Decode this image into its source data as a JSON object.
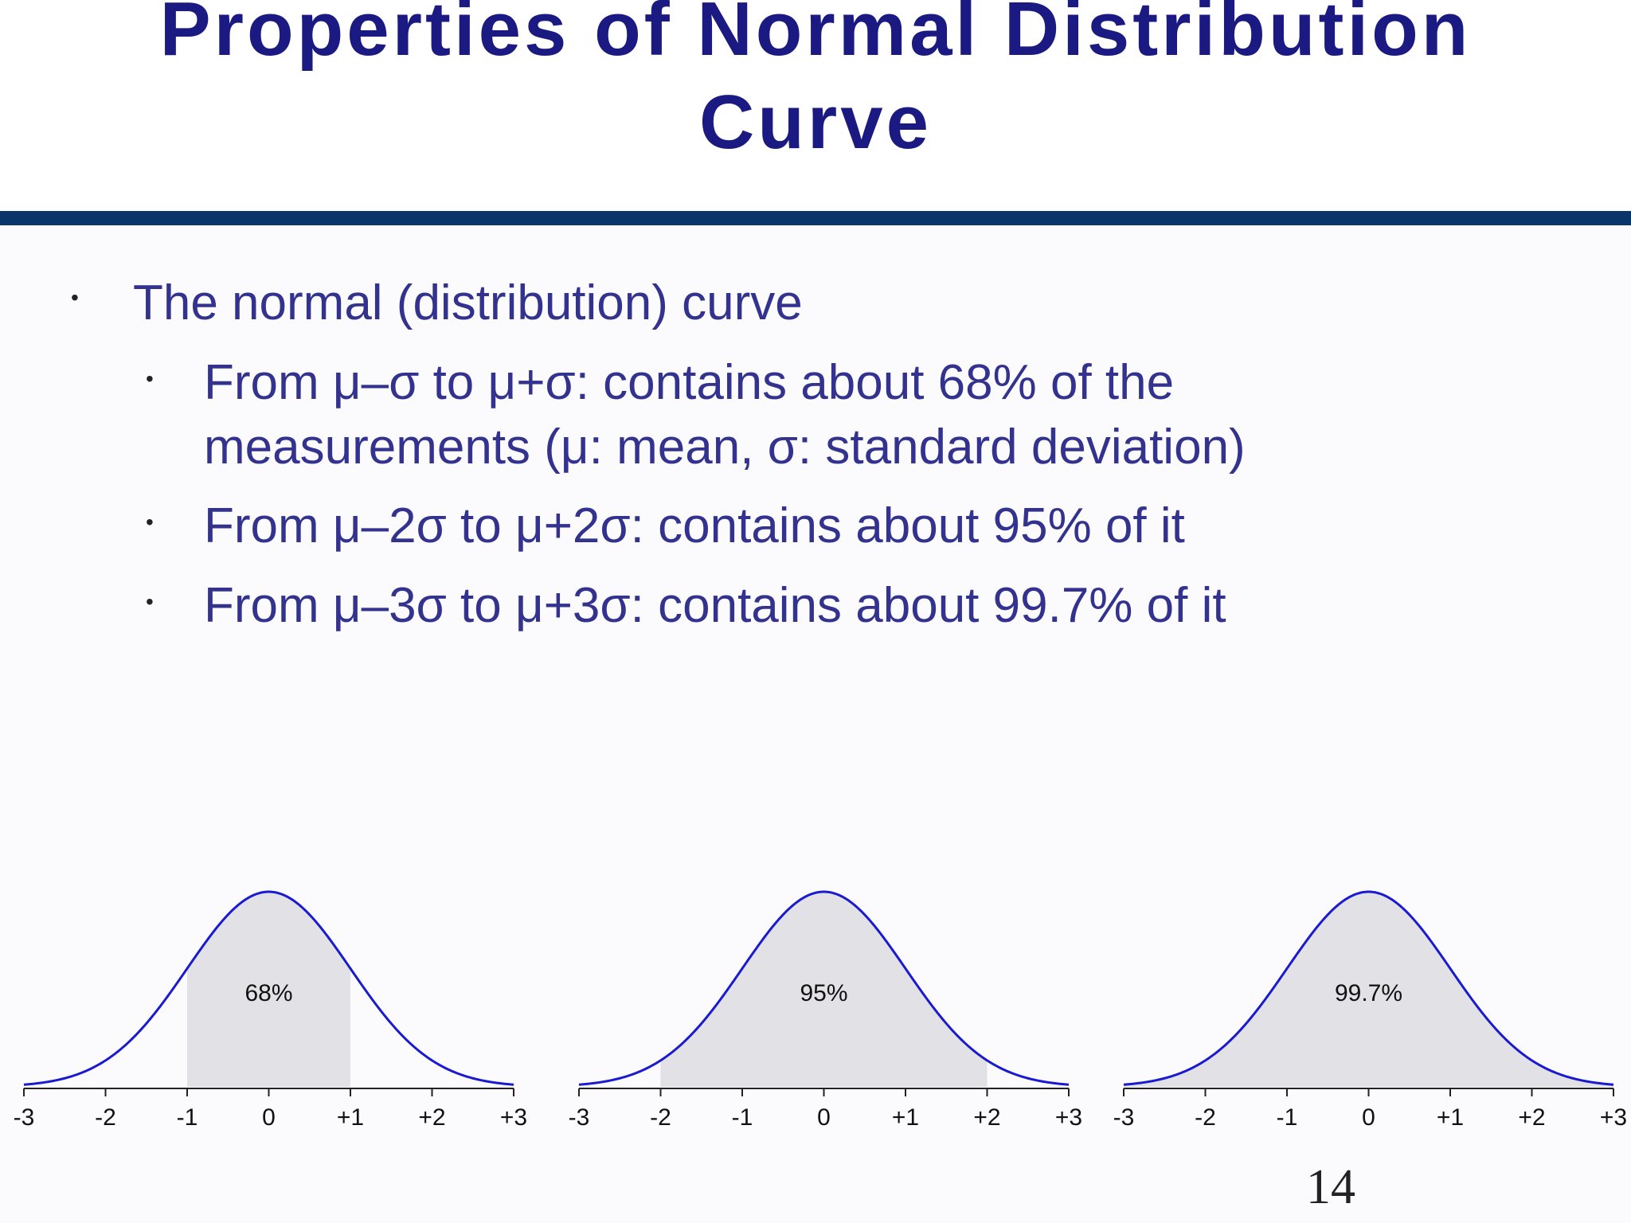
{
  "slide": {
    "title_lines": [
      "Properties of Normal Distribution",
      "Curve"
    ],
    "page_number": "14"
  },
  "bullets": {
    "main": "The normal (distribution) curve",
    "sub": [
      {
        "lines": [
          "From μ–σ to μ+σ: contains about 68% of the",
          "measurements  (μ: mean, σ: standard deviation)"
        ]
      },
      {
        "lines": [
          " From μ–2σ to μ+2σ: contains about 95% of it"
        ]
      },
      {
        "lines": [
          "From μ–3σ to μ+3σ: contains about 99.7% of it"
        ]
      }
    ]
  },
  "colors": {
    "title": "#1a1a82",
    "rule": "#0a3568",
    "bullet_text": "#33338f",
    "curve": "#1a1ad1",
    "shade": "#e2e2e6"
  },
  "chart_data": [
    {
      "type": "area",
      "distribution": "standard normal",
      "x_ticks": [
        "-3",
        "-2",
        "-1",
        "0",
        "+1",
        "+2",
        "+3"
      ],
      "xlim": [
        -3,
        3
      ],
      "shaded_range": [
        -1,
        1
      ],
      "label": "68%"
    },
    {
      "type": "area",
      "distribution": "standard normal",
      "x_ticks": [
        "-3",
        "-2",
        "-1",
        "0",
        "+1",
        "+2",
        "+3"
      ],
      "xlim": [
        -3,
        3
      ],
      "shaded_range": [
        -2,
        2
      ],
      "label": "95%"
    },
    {
      "type": "area",
      "distribution": "standard normal",
      "x_ticks": [
        "-3",
        "-2",
        "-1",
        "0",
        "+1",
        "+2",
        "+3"
      ],
      "xlim": [
        -3,
        3
      ],
      "shaded_range": [
        -3,
        3
      ],
      "label": "99.7%"
    }
  ]
}
